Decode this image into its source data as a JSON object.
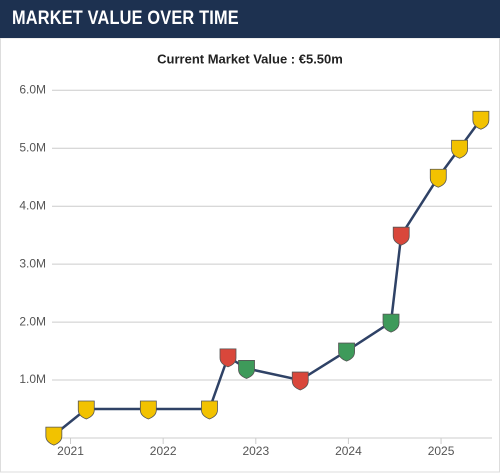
{
  "chart_data": {
    "type": "line",
    "title": "MARKET VALUE OVER TIME",
    "subtitle": "Current Market Value : €5.50m",
    "x": [
      2020.82,
      2021.17,
      2021.84,
      2022.5,
      2022.7,
      2022.9,
      2023.48,
      2023.98,
      2024.46,
      2024.57,
      2024.97,
      2025.2,
      2025.43
    ],
    "series": [
      {
        "color": "#2f4266",
        "values": [
          0.05,
          0.5,
          0.5,
          0.5,
          1.4,
          1.2,
          1.0,
          1.5,
          2.0,
          3.5,
          4.5,
          5.0,
          5.5
        ],
        "point_colors": [
          "#f2c200",
          "#f2c200",
          "#f2c200",
          "#f2c200",
          "#d9473b",
          "#3e9a5a",
          "#d9473b",
          "#3e9a5a",
          "#3e9a5a",
          "#d9473b",
          "#f2c200",
          "#f2c200",
          "#f2c200"
        ]
      }
    ],
    "xlim": [
      2020.8,
      2025.55
    ],
    "xticks": [
      2021,
      2022,
      2023,
      2024,
      2025
    ],
    "ylim": [
      0,
      6.35
    ],
    "yticks": [
      {
        "value": 1,
        "label": "1.0M"
      },
      {
        "value": 2,
        "label": "2.0M"
      },
      {
        "value": 3,
        "label": "3.0M"
      },
      {
        "value": 4,
        "label": "4.0M"
      },
      {
        "value": 5,
        "label": "5.0M"
      },
      {
        "value": 6,
        "label": "6.0M"
      }
    ],
    "grid": true
  }
}
